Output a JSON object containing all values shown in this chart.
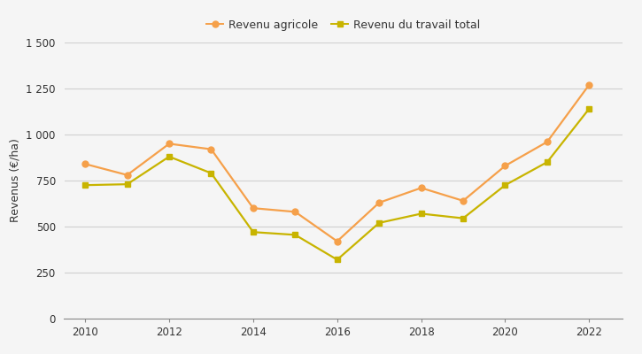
{
  "years": [
    2010,
    2011,
    2012,
    2013,
    2014,
    2015,
    2016,
    2017,
    2018,
    2019,
    2020,
    2021,
    2022
  ],
  "revenu_agricole": [
    840,
    780,
    950,
    920,
    600,
    580,
    420,
    630,
    710,
    640,
    830,
    960,
    1270
  ],
  "revenu_travail": [
    725,
    730,
    880,
    790,
    470,
    455,
    320,
    520,
    570,
    545,
    725,
    850,
    1140
  ],
  "color_agricole": "#F5A04A",
  "color_travail": "#C8B400",
  "label_agricole": "Revenu agricole",
  "label_travail": "Revenu du travail total",
  "ylabel": "Revenus (€/ha)",
  "ylim": [
    0,
    1500
  ],
  "yticks": [
    0,
    250,
    500,
    750,
    1000,
    1250,
    1500
  ],
  "ytick_labels": [
    "0",
    "250",
    "500",
    "750",
    "1 000",
    "1 250",
    "1 500"
  ],
  "xticks": [
    2010,
    2012,
    2014,
    2016,
    2018,
    2020,
    2022
  ],
  "marker_agricole": "o",
  "marker_travail": "s",
  "linewidth": 1.6,
  "markersize": 5,
  "background_color": "#f5f5f5",
  "plot_bg_color": "#f5f5f5",
  "grid_color": "#d0d0d0",
  "tick_color": "#333333",
  "label_fontsize": 9,
  "tick_fontsize": 8.5
}
